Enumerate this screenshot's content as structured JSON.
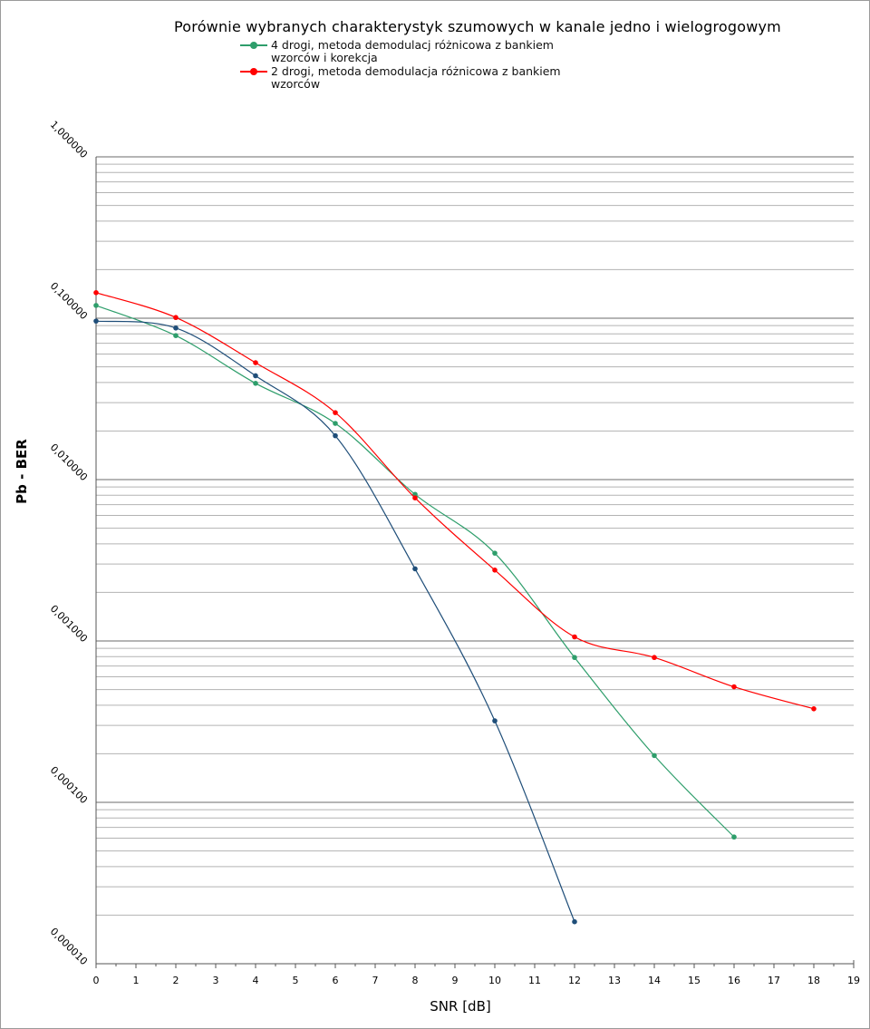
{
  "chart_data": {
    "type": "line",
    "title": "Porównie wybranych charakterystyk szumowych w kanale jedno i wielogrogowym",
    "xlabel": "SNR [dB]",
    "ylabel": "Pb - BER",
    "xlim": [
      0,
      19
    ],
    "ylim": [
      1e-05,
      1
    ],
    "yscale": "log",
    "grid": true,
    "legend": "top",
    "x_ticks": [
      0,
      1,
      2,
      3,
      4,
      5,
      6,
      7,
      8,
      9,
      10,
      11,
      12,
      13,
      14,
      15,
      16,
      17,
      18,
      19
    ],
    "y_tick_labels": [
      "1,000000",
      "0,100000",
      "0,010000",
      "0,001000",
      "0,000100",
      "0,000010"
    ],
    "series": [
      {
        "name": "4 drogi, metoda demodulacj różnicowa z bankiem wzorców i korekcja",
        "color": "#2e9e6b",
        "show_in_legend": true,
        "points": [
          [
            0,
            0.12
          ],
          [
            2,
            0.078
          ],
          [
            4,
            0.0395
          ],
          [
            6,
            0.0223
          ],
          [
            8,
            0.0081
          ],
          [
            10,
            0.0035
          ],
          [
            12,
            0.00079
          ],
          [
            14,
            0.000195
          ],
          [
            16,
            6.1e-05
          ]
        ]
      },
      {
        "name": "2 drogi, metoda demodulacja różnicowa z bankiem wzorców",
        "color": "#ff0000",
        "show_in_legend": true,
        "points": [
          [
            0,
            0.144
          ],
          [
            2,
            0.101
          ],
          [
            4,
            0.053
          ],
          [
            6,
            0.026
          ],
          [
            8,
            0.0077
          ],
          [
            10,
            0.00275
          ],
          [
            12,
            0.00106
          ],
          [
            14,
            0.00079
          ],
          [
            16,
            0.00052
          ],
          [
            18,
            0.00038
          ]
        ]
      },
      {
        "name": "",
        "color": "#1f4e79",
        "show_in_legend": false,
        "points": [
          [
            0,
            0.096
          ],
          [
            2,
            0.087
          ],
          [
            4,
            0.044
          ],
          [
            6,
            0.0187
          ],
          [
            8,
            0.0028
          ],
          [
            10,
            0.00032
          ],
          [
            12,
            1.82e-05
          ]
        ]
      }
    ]
  }
}
